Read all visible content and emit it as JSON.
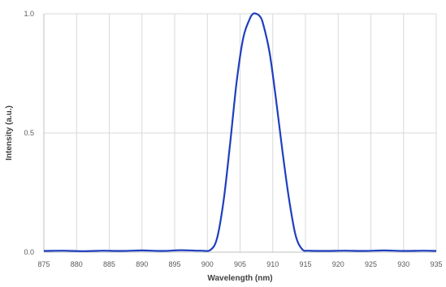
{
  "chart_data": {
    "type": "line",
    "title": "",
    "xlabel": "Wavelength (nm)",
    "ylabel": "Intensity (a.u.)",
    "xlim": [
      875,
      935
    ],
    "ylim": [
      0,
      1.0
    ],
    "x_ticks": [
      "875",
      "880",
      "885",
      "890",
      "895",
      "900",
      "905",
      "910",
      "915",
      "920",
      "925",
      "930",
      "935"
    ],
    "y_ticks": [
      "0.0",
      "0.5",
      "1.0"
    ],
    "grid": true,
    "legend": "none",
    "series": [
      {
        "color": "#1f3fbf",
        "x": [
          875,
          878,
          881,
          884,
          887,
          890,
          893,
          896,
          899,
          900.5,
          901.5,
          902.5,
          903.5,
          904.5,
          905.5,
          906.5,
          907.0,
          907.5,
          908.0,
          908.5,
          909.5,
          910.5,
          911.5,
          912.5,
          913.5,
          914.5,
          915.5,
          918,
          921,
          924,
          927,
          930,
          933,
          935
        ],
        "y": [
          0.005,
          0.006,
          0.004,
          0.006,
          0.005,
          0.007,
          0.005,
          0.008,
          0.006,
          0.01,
          0.06,
          0.22,
          0.46,
          0.72,
          0.9,
          0.98,
          1.0,
          1.0,
          0.99,
          0.96,
          0.84,
          0.64,
          0.42,
          0.22,
          0.07,
          0.012,
          0.006,
          0.005,
          0.006,
          0.005,
          0.007,
          0.005,
          0.006,
          0.005
        ]
      }
    ]
  }
}
